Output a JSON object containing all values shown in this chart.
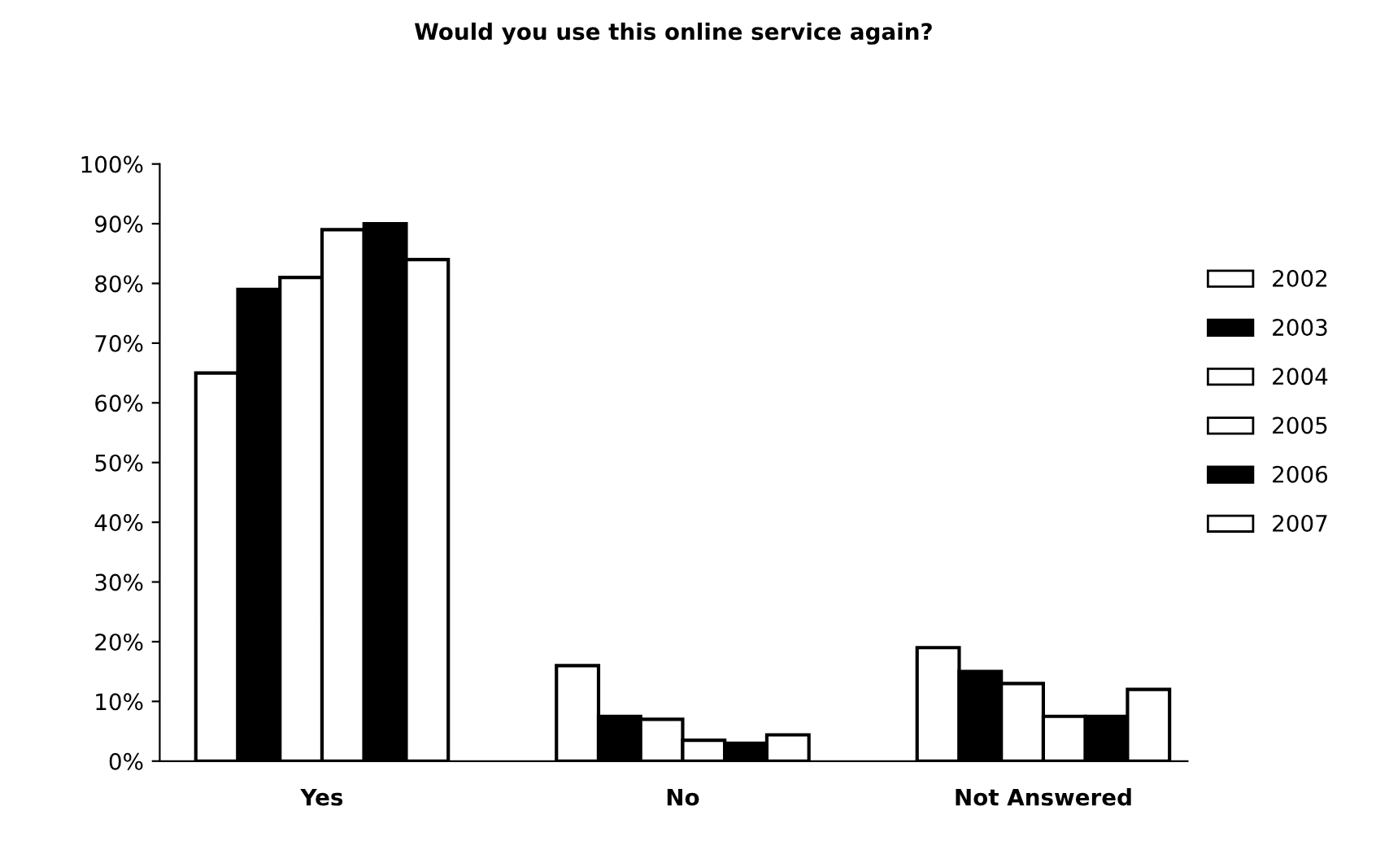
{
  "chart_data": {
    "type": "bar",
    "title": "Would you use this online service again?",
    "categories": [
      "Yes",
      "No",
      "Not Answered"
    ],
    "series": [
      {
        "name": "2002",
        "color": "#ffffff",
        "values": [
          65,
          16,
          19
        ]
      },
      {
        "name": "2003",
        "color": "#000000",
        "values": [
          79,
          7.5,
          15
        ]
      },
      {
        "name": "2004",
        "color": "#ffffff",
        "values": [
          81,
          7,
          13
        ]
      },
      {
        "name": "2005",
        "color": "#ffffff",
        "values": [
          89,
          3.5,
          7.5
        ]
      },
      {
        "name": "2006",
        "color": "#000000",
        "values": [
          90,
          3,
          7.5
        ]
      },
      {
        "name": "2007",
        "color": "#ffffff",
        "values": [
          84,
          4.4,
          12
        ]
      }
    ],
    "ylim": [
      0,
      100
    ],
    "yticks": [
      {
        "value": 0,
        "label": "0%"
      },
      {
        "value": 10,
        "label": "10%"
      },
      {
        "value": 20,
        "label": "20%"
      },
      {
        "value": 30,
        "label": "30%"
      },
      {
        "value": 40,
        "label": "40%"
      },
      {
        "value": 50,
        "label": "50%"
      },
      {
        "value": 60,
        "label": "60%"
      },
      {
        "value": 70,
        "label": "70%"
      },
      {
        "value": 80,
        "label": "80%"
      },
      {
        "value": 90,
        "label": "90%"
      },
      {
        "value": 100,
        "label": "100%"
      }
    ],
    "grid": false,
    "legend": "right"
  }
}
